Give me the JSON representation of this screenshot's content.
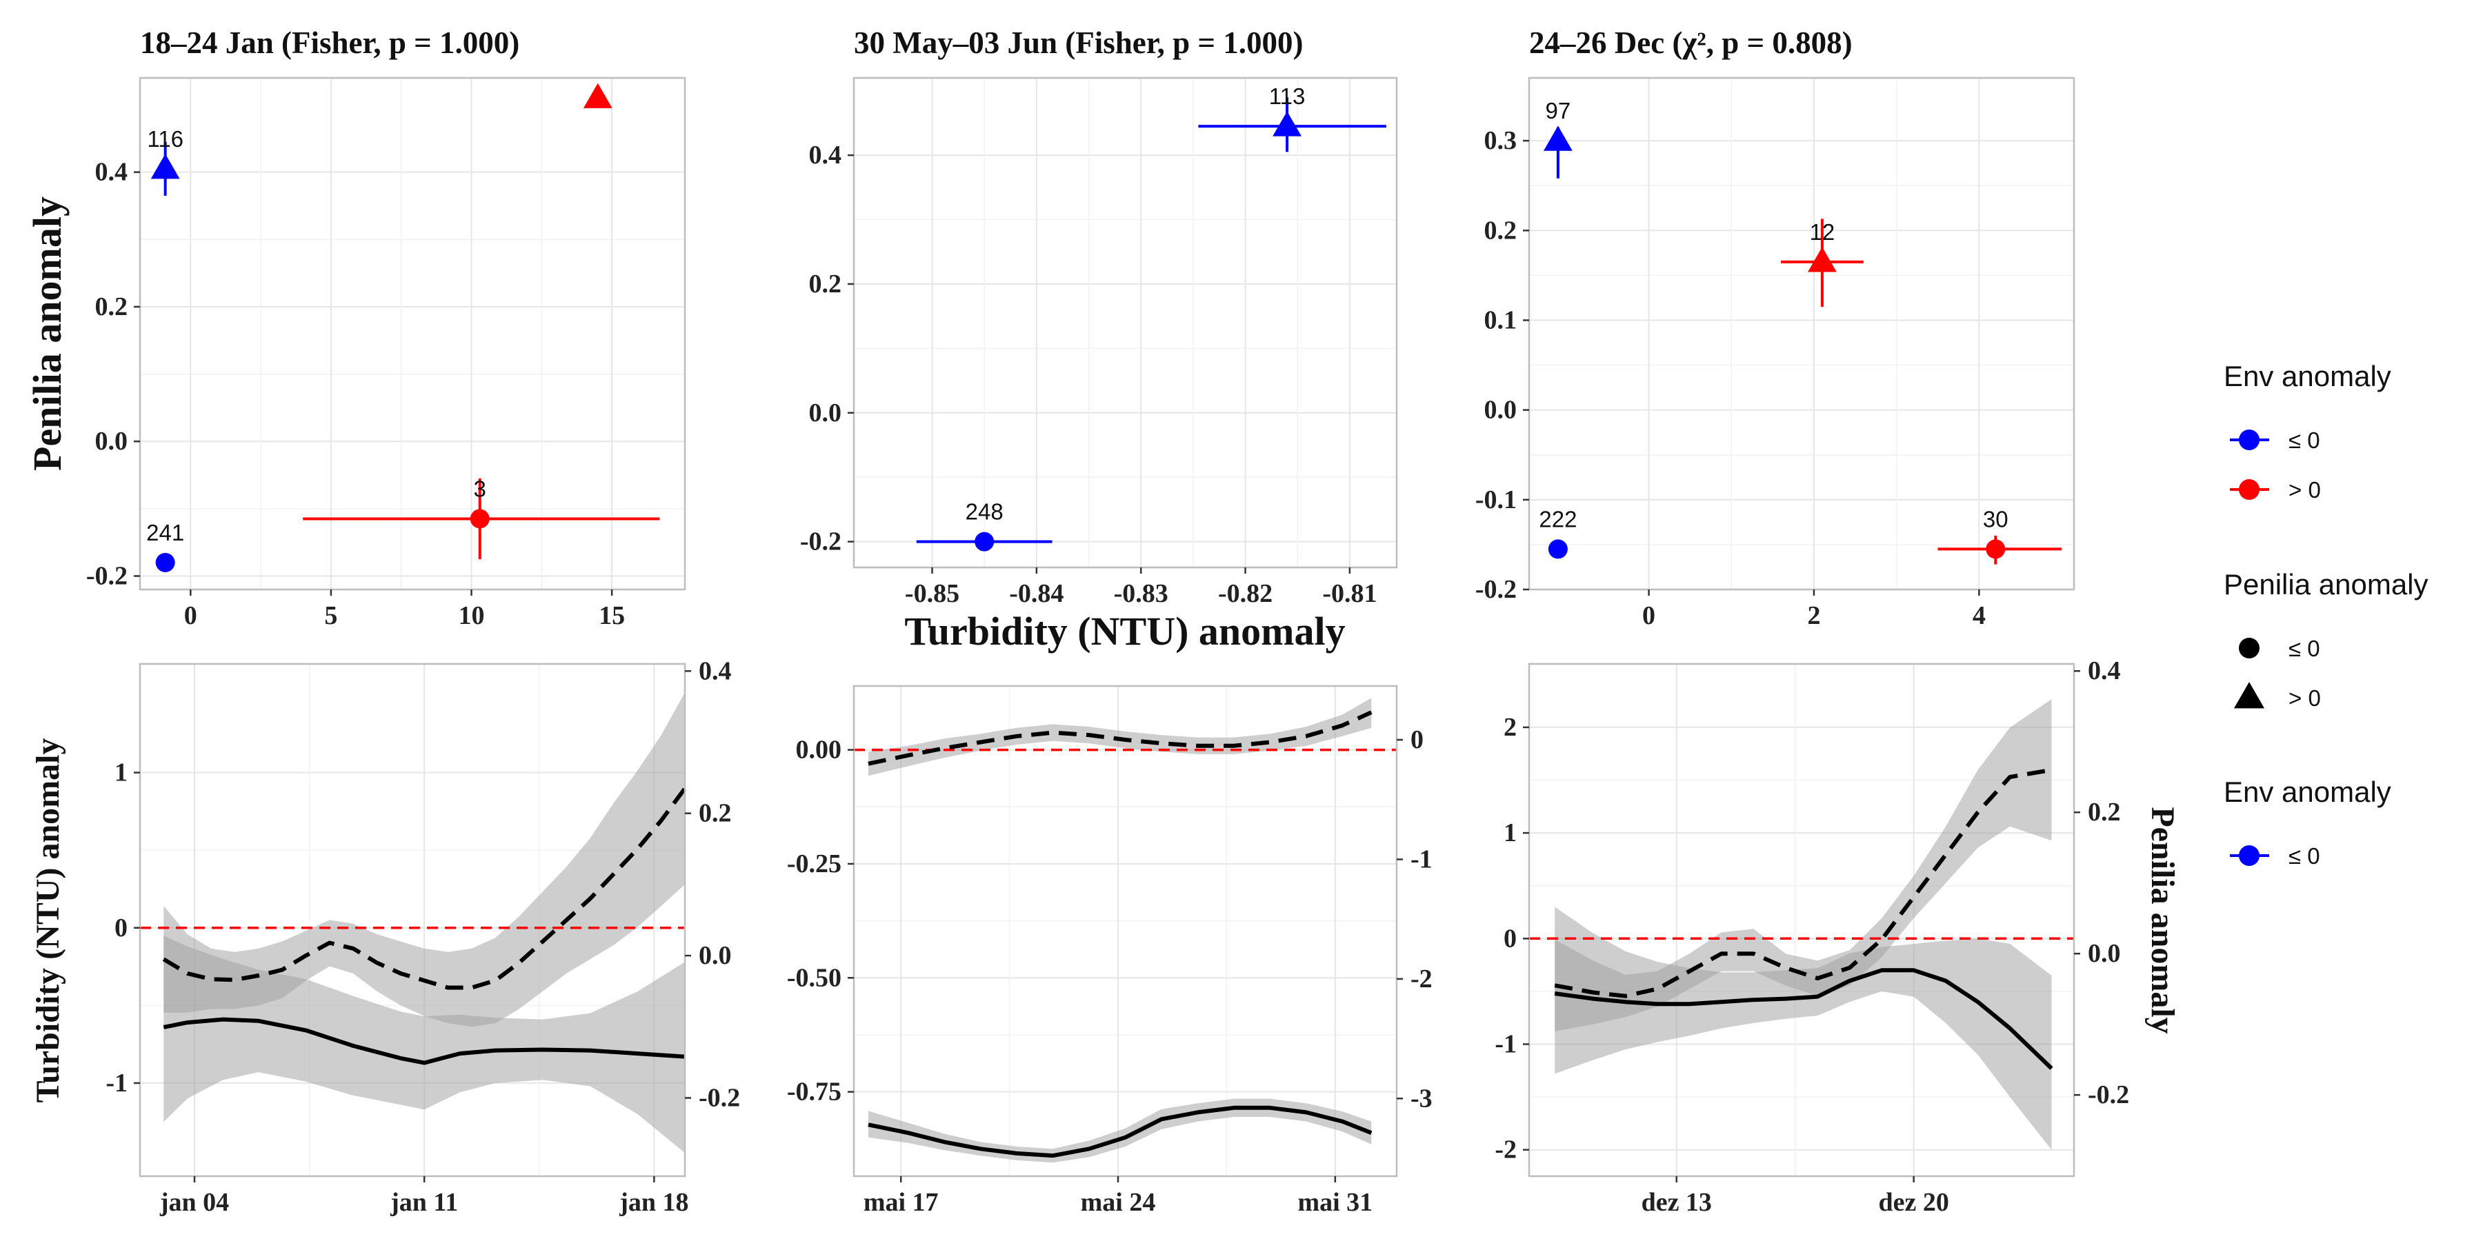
{
  "figure": {
    "top_panels": [
      {
        "title": "18–24 Jan (Fisher, p = 1.000)",
        "xlim": [
          -1.8,
          17.6
        ],
        "ylim": [
          -0.22,
          0.54
        ],
        "xticks": [
          0,
          5,
          10,
          15
        ],
        "yticks": [
          -0.2,
          0.0,
          0.2,
          0.4
        ],
        "ytick_labels": [
          "-0.2",
          "0.0",
          "0.2",
          "0.4"
        ],
        "points": [
          {
            "x": -0.9,
            "y": 0.405,
            "shape": "triangle",
            "env": "le0",
            "ylo": 0.365,
            "yhi": 0.445,
            "label": "116"
          },
          {
            "x": -0.9,
            "y": -0.18,
            "shape": "circle",
            "env": "le0",
            "label": "241"
          },
          {
            "x": 14.5,
            "y": 0.51,
            "shape": "triangle",
            "env": "gt0"
          },
          {
            "x": 10.3,
            "y": -0.115,
            "shape": "circle",
            "env": "gt0",
            "xlo": 4.0,
            "xhi": 16.7,
            "ylo": -0.175,
            "yhi": -0.055,
            "label": "3"
          }
        ]
      },
      {
        "title": "30 May–03 Jun (Fisher, p = 1.000)",
        "xlim": [
          -0.8575,
          -0.8055
        ],
        "ylim": [
          -0.24,
          0.52
        ],
        "xticks": [
          -0.85,
          -0.84,
          -0.83,
          -0.82,
          -0.81
        ],
        "xtick_labels": [
          "-0.85",
          "-0.84",
          "-0.83",
          "-0.82",
          "-0.81"
        ],
        "yticks": [
          -0.2,
          0.0,
          0.2,
          0.4
        ],
        "ytick_labels": [
          "-0.2",
          "0.0",
          "0.2",
          "0.4"
        ],
        "points": [
          {
            "x": -0.816,
            "y": 0.445,
            "shape": "triangle",
            "env": "le0",
            "xlo": -0.8245,
            "xhi": -0.8065,
            "ylo": 0.405,
            "yhi": 0.49,
            "label": "113"
          },
          {
            "x": -0.845,
            "y": -0.2,
            "shape": "circle",
            "env": "le0",
            "xlo": -0.8515,
            "xhi": -0.8385,
            "label": "248"
          }
        ]
      },
      {
        "title": "24–26 Dec (χ², p = 0.808)",
        "xlim": [
          -1.45,
          5.15
        ],
        "ylim": [
          -0.2,
          0.37
        ],
        "xticks": [
          0,
          2,
          4
        ],
        "yticks": [
          -0.2,
          -0.1,
          0.0,
          0.1,
          0.2,
          0.3
        ],
        "ytick_labels": [
          "-0.2",
          "-0.1",
          "0.0",
          "0.1",
          "0.2",
          "0.3"
        ],
        "points": [
          {
            "x": -1.1,
            "y": 0.3,
            "shape": "triangle",
            "env": "le0",
            "ylo": 0.258,
            "yhi": 0.315,
            "label": "97"
          },
          {
            "x": -1.1,
            "y": -0.155,
            "shape": "circle",
            "env": "le0",
            "label": "222"
          },
          {
            "x": 2.1,
            "y": 0.165,
            "shape": "triangle",
            "env": "gt0",
            "xlo": 1.6,
            "xhi": 2.6,
            "ylo": 0.115,
            "yhi": 0.213,
            "label": "12"
          },
          {
            "x": 4.2,
            "y": -0.155,
            "shape": "circle",
            "env": "gt0",
            "xlo": 3.5,
            "xhi": 5.0,
            "ylo": -0.172,
            "yhi": -0.14,
            "label": "30"
          }
        ]
      }
    ],
    "top_ylabel": "Penilia anomaly",
    "top_xlabel": "Turbidity (NTU) anomaly",
    "bottom_panels": [
      {
        "xlim": [
          0,
          23
        ],
        "ylim": [
          -1.6,
          1.7
        ],
        "yticks": [
          -1,
          0,
          1
        ],
        "ytick_labels": [
          "-1",
          "0",
          "1"
        ],
        "right_ylim": [
          -0.31,
          0.41
        ],
        "right_yticks": [
          -0.2,
          0.0,
          0.2,
          0.4
        ],
        "right_ytick_labels": [
          "-0.2",
          "0.0",
          "0.2",
          "0.4"
        ],
        "xticks": [
          2.3,
          12,
          21.7
        ],
        "xtick_labels": [
          "jan 04",
          "jan 11",
          "jan 18"
        ],
        "solid": {
          "x": [
            1,
            2,
            3.5,
            5,
            7,
            9,
            11,
            12,
            13.5,
            15,
            17,
            19,
            21,
            23
          ],
          "y": [
            -0.64,
            -0.61,
            -0.59,
            -0.6,
            -0.66,
            -0.76,
            -0.84,
            -0.87,
            -0.81,
            -0.79,
            -0.785,
            -0.79,
            -0.81,
            -0.83
          ],
          "lo": [
            -1.25,
            -1.1,
            -0.98,
            -0.93,
            -0.99,
            -1.08,
            -1.14,
            -1.17,
            -1.06,
            -1.0,
            -0.98,
            -1.02,
            -1.2,
            -1.45
          ],
          "hi": [
            -0.05,
            -0.12,
            -0.2,
            -0.27,
            -0.33,
            -0.44,
            -0.54,
            -0.57,
            -0.56,
            -0.58,
            -0.59,
            -0.55,
            -0.41,
            -0.22
          ]
        },
        "dashed": {
          "x": [
            1,
            2,
            3,
            4,
            5,
            6,
            7,
            8,
            9,
            10,
            11,
            12,
            13,
            14,
            15,
            16,
            17,
            18,
            19,
            20,
            21,
            22,
            23
          ],
          "y": [
            -0.005,
            -0.025,
            -0.033,
            -0.034,
            -0.028,
            -0.02,
            0.0,
            0.018,
            0.01,
            -0.01,
            -0.025,
            -0.035,
            -0.045,
            -0.045,
            -0.035,
            -0.01,
            0.02,
            0.05,
            0.08,
            0.115,
            0.15,
            0.19,
            0.235
          ],
          "lo": [
            -0.08,
            -0.08,
            -0.075,
            -0.075,
            -0.07,
            -0.06,
            -0.035,
            -0.015,
            -0.025,
            -0.05,
            -0.07,
            -0.085,
            -0.095,
            -0.1,
            -0.095,
            -0.075,
            -0.05,
            -0.025,
            -0.005,
            0.015,
            0.04,
            0.07,
            0.1
          ],
          "hi": [
            0.07,
            0.03,
            0.01,
            0.005,
            0.01,
            0.02,
            0.035,
            0.05,
            0.045,
            0.03,
            0.02,
            0.01,
            0.005,
            0.01,
            0.025,
            0.055,
            0.09,
            0.125,
            0.165,
            0.215,
            0.26,
            0.31,
            0.37
          ]
        }
      },
      {
        "xlim": [
          0,
          15
        ],
        "ylim": [
          -0.935,
          0.14
        ],
        "yticks": [
          -0.75,
          -0.5,
          -0.25,
          0.0
        ],
        "ytick_labels": [
          "-0.75",
          "-0.50",
          "-0.25",
          "0.00"
        ],
        "right_ylim": [
          -3.65,
          0.45
        ],
        "right_yticks": [
          -3,
          -2,
          -1,
          0
        ],
        "right_ytick_labels": [
          "-3",
          "-2",
          "-1",
          "0"
        ],
        "xticks": [
          1.3,
          7.3,
          13.3
        ],
        "xtick_labels": [
          "mai 17",
          "mai 24",
          "mai 31"
        ],
        "solid": {
          "x": [
            0.4,
            1.5,
            2.5,
            3.5,
            4.5,
            5.5,
            6.5,
            7.5,
            8.5,
            9.5,
            10.5,
            11.5,
            12.5,
            13.5,
            14.3
          ],
          "y": [
            -0.822,
            -0.84,
            -0.86,
            -0.875,
            -0.885,
            -0.89,
            -0.875,
            -0.85,
            -0.81,
            -0.795,
            -0.785,
            -0.785,
            -0.795,
            -0.815,
            -0.84
          ],
          "lo": [
            -0.85,
            -0.862,
            -0.878,
            -0.89,
            -0.9,
            -0.905,
            -0.893,
            -0.87,
            -0.832,
            -0.815,
            -0.805,
            -0.805,
            -0.815,
            -0.837,
            -0.865
          ],
          "hi": [
            -0.792,
            -0.818,
            -0.842,
            -0.86,
            -0.87,
            -0.875,
            -0.857,
            -0.83,
            -0.788,
            -0.775,
            -0.765,
            -0.765,
            -0.775,
            -0.793,
            -0.815
          ]
        },
        "dashed": {
          "x": [
            0.4,
            1.5,
            2.5,
            3.5,
            4.5,
            5.5,
            6.5,
            7.5,
            8.5,
            9.5,
            10.5,
            11.5,
            12.5,
            13.5,
            14.3
          ],
          "y": [
            -0.2,
            -0.13,
            -0.07,
            -0.02,
            0.03,
            0.06,
            0.04,
            0.0,
            -0.03,
            -0.05,
            -0.05,
            -0.02,
            0.03,
            0.12,
            0.23
          ],
          "lo": [
            -0.3,
            -0.22,
            -0.15,
            -0.09,
            -0.04,
            -0.01,
            -0.03,
            -0.07,
            -0.1,
            -0.12,
            -0.12,
            -0.09,
            -0.05,
            0.03,
            0.1
          ],
          "hi": [
            -0.1,
            -0.05,
            0.01,
            0.05,
            0.1,
            0.13,
            0.11,
            0.07,
            0.04,
            0.02,
            0.02,
            0.05,
            0.11,
            0.21,
            0.35
          ]
        }
      },
      {
        "xlim": [
          0,
          17
        ],
        "ylim": [
          -2.25,
          2.6
        ],
        "yticks": [
          -2,
          -1,
          0,
          1,
          2
        ],
        "ytick_labels": [
          "-2",
          "-1",
          "0",
          "1",
          "2"
        ],
        "right_ylim": [
          -0.315,
          0.41
        ],
        "right_yticks": [
          -0.2,
          0.0,
          0.2,
          0.4
        ],
        "right_ytick_labels": [
          "-0.2",
          "0.0",
          "0.2",
          "0.4"
        ],
        "xticks": [
          4.6,
          12.0
        ],
        "xtick_labels": [
          "dez 13",
          "dez 20"
        ],
        "solid": {
          "x": [
            0.8,
            2,
            3,
            4,
            5,
            6,
            7,
            8,
            9,
            10,
            11,
            12,
            13,
            14,
            15,
            16.3
          ],
          "y": [
            -0.52,
            -0.57,
            -0.6,
            -0.62,
            -0.62,
            -0.6,
            -0.58,
            -0.57,
            -0.55,
            -0.4,
            -0.3,
            -0.3,
            -0.4,
            -0.6,
            -0.85,
            -1.23
          ],
          "lo": [
            -1.28,
            -1.15,
            -1.05,
            -0.98,
            -0.92,
            -0.85,
            -0.8,
            -0.76,
            -0.73,
            -0.6,
            -0.5,
            -0.55,
            -0.8,
            -1.1,
            -1.5,
            -2.0
          ],
          "hi": [
            0.3,
            0.05,
            -0.12,
            -0.22,
            -0.28,
            -0.32,
            -0.32,
            -0.3,
            -0.28,
            -0.14,
            -0.08,
            -0.05,
            -0.02,
            0.0,
            -0.05,
            -0.35
          ]
        },
        "dashed": {
          "x": [
            0.8,
            2,
            3,
            4,
            5,
            6,
            7,
            8,
            9,
            10,
            11,
            12,
            13,
            14,
            15,
            16.3
          ],
          "y": [
            -0.045,
            -0.055,
            -0.06,
            -0.05,
            -0.025,
            0.0,
            0.0,
            -0.02,
            -0.035,
            -0.02,
            0.02,
            0.08,
            0.14,
            0.2,
            0.25,
            0.26
          ],
          "lo": [
            -0.11,
            -0.1,
            -0.09,
            -0.075,
            -0.05,
            -0.025,
            -0.025,
            -0.045,
            -0.06,
            -0.045,
            -0.005,
            0.05,
            0.1,
            0.15,
            0.18,
            0.16
          ],
          "hi": [
            0.02,
            -0.01,
            -0.03,
            -0.025,
            0.0,
            0.03,
            0.035,
            0.0,
            -0.01,
            0.005,
            0.05,
            0.11,
            0.18,
            0.26,
            0.32,
            0.36
          ]
        }
      }
    ],
    "bottom_ylabel_left": "Turbidity (NTU) anomaly",
    "bottom_ylabel_right": "Penilia anomaly",
    "legend": [
      {
        "title": "Env anomaly",
        "items": [
          {
            "label": "≤ 0",
            "color": "#0000ff",
            "type": "line-point"
          },
          {
            "label": "> 0",
            "color": "#ff0000",
            "type": "line-point"
          }
        ]
      },
      {
        "title": "Penilia anomaly",
        "items": [
          {
            "label": "≤ 0",
            "color": "#000000",
            "type": "circle"
          },
          {
            "label": "> 0",
            "color": "#000000",
            "type": "triangle"
          }
        ]
      },
      {
        "title": "Env anomaly",
        "items": [
          {
            "label": "≤ 0",
            "color": "#0000ff",
            "type": "line-point"
          }
        ]
      }
    ],
    "colors": {
      "le0": "#0000ff",
      "gt0": "#ff0000",
      "zero_line": "#ff0000",
      "ribbon": "#9e9e9e",
      "grid": "#e6e6e6",
      "border": "#bdbdbd"
    }
  },
  "chart_data": [
    {
      "type": "scatter",
      "title": "18–24 Jan (Fisher, p = 1.000)",
      "xlabel": "Turbidity (NTU) anomaly",
      "ylabel": "Penilia anomaly",
      "series": [
        {
          "name": "≤ 0",
          "points": [
            {
              "x": -0.9,
              "y": 0.405,
              "n": "116"
            },
            {
              "x": -0.9,
              "y": -0.18,
              "n": "241"
            }
          ]
        },
        {
          "name": "> 0",
          "points": [
            {
              "x": 14.5,
              "y": 0.51
            },
            {
              "x": 10.3,
              "y": -0.115,
              "n": "3"
            }
          ]
        }
      ]
    },
    {
      "type": "scatter",
      "title": "30 May–03 Jun (Fisher, p = 1.000)",
      "xlabel": "Turbidity (NTU) anomaly",
      "ylabel": "Penilia anomaly",
      "series": [
        {
          "name": "≤ 0",
          "points": [
            {
              "x": -0.816,
              "y": 0.445,
              "n": "113"
            },
            {
              "x": -0.845,
              "y": -0.2,
              "n": "248"
            }
          ]
        }
      ]
    },
    {
      "type": "scatter",
      "title": "24–26 Dec (χ², p = 0.808)",
      "xlabel": "Turbidity (NTU) anomaly",
      "ylabel": "Penilia anomaly",
      "series": [
        {
          "name": "≤ 0",
          "points": [
            {
              "x": -1.1,
              "y": 0.3,
              "n": "97"
            },
            {
              "x": -1.1,
              "y": -0.155,
              "n": "222"
            }
          ]
        },
        {
          "name": "> 0",
          "points": [
            {
              "x": 2.1,
              "y": 0.165,
              "n": "12"
            },
            {
              "x": 4.2,
              "y": -0.155,
              "n": "30"
            }
          ]
        }
      ]
    },
    {
      "type": "line",
      "xlabel": "",
      "ylabel": "Turbidity (NTU) anomaly",
      "ylabel_right": "Penilia anomaly",
      "x_ticks": [
        "jan 04",
        "jan 11",
        "jan 18"
      ]
    },
    {
      "type": "line",
      "xlabel": "",
      "ylabel": "Turbidity (NTU) anomaly",
      "ylabel_right": "Penilia anomaly",
      "x_ticks": [
        "mai 17",
        "mai 24",
        "mai 31"
      ]
    },
    {
      "type": "line",
      "xlabel": "",
      "ylabel": "Turbidity (NTU) anomaly",
      "ylabel_right": "Penilia anomaly",
      "x_ticks": [
        "dez 13",
        "dez 20"
      ]
    }
  ]
}
